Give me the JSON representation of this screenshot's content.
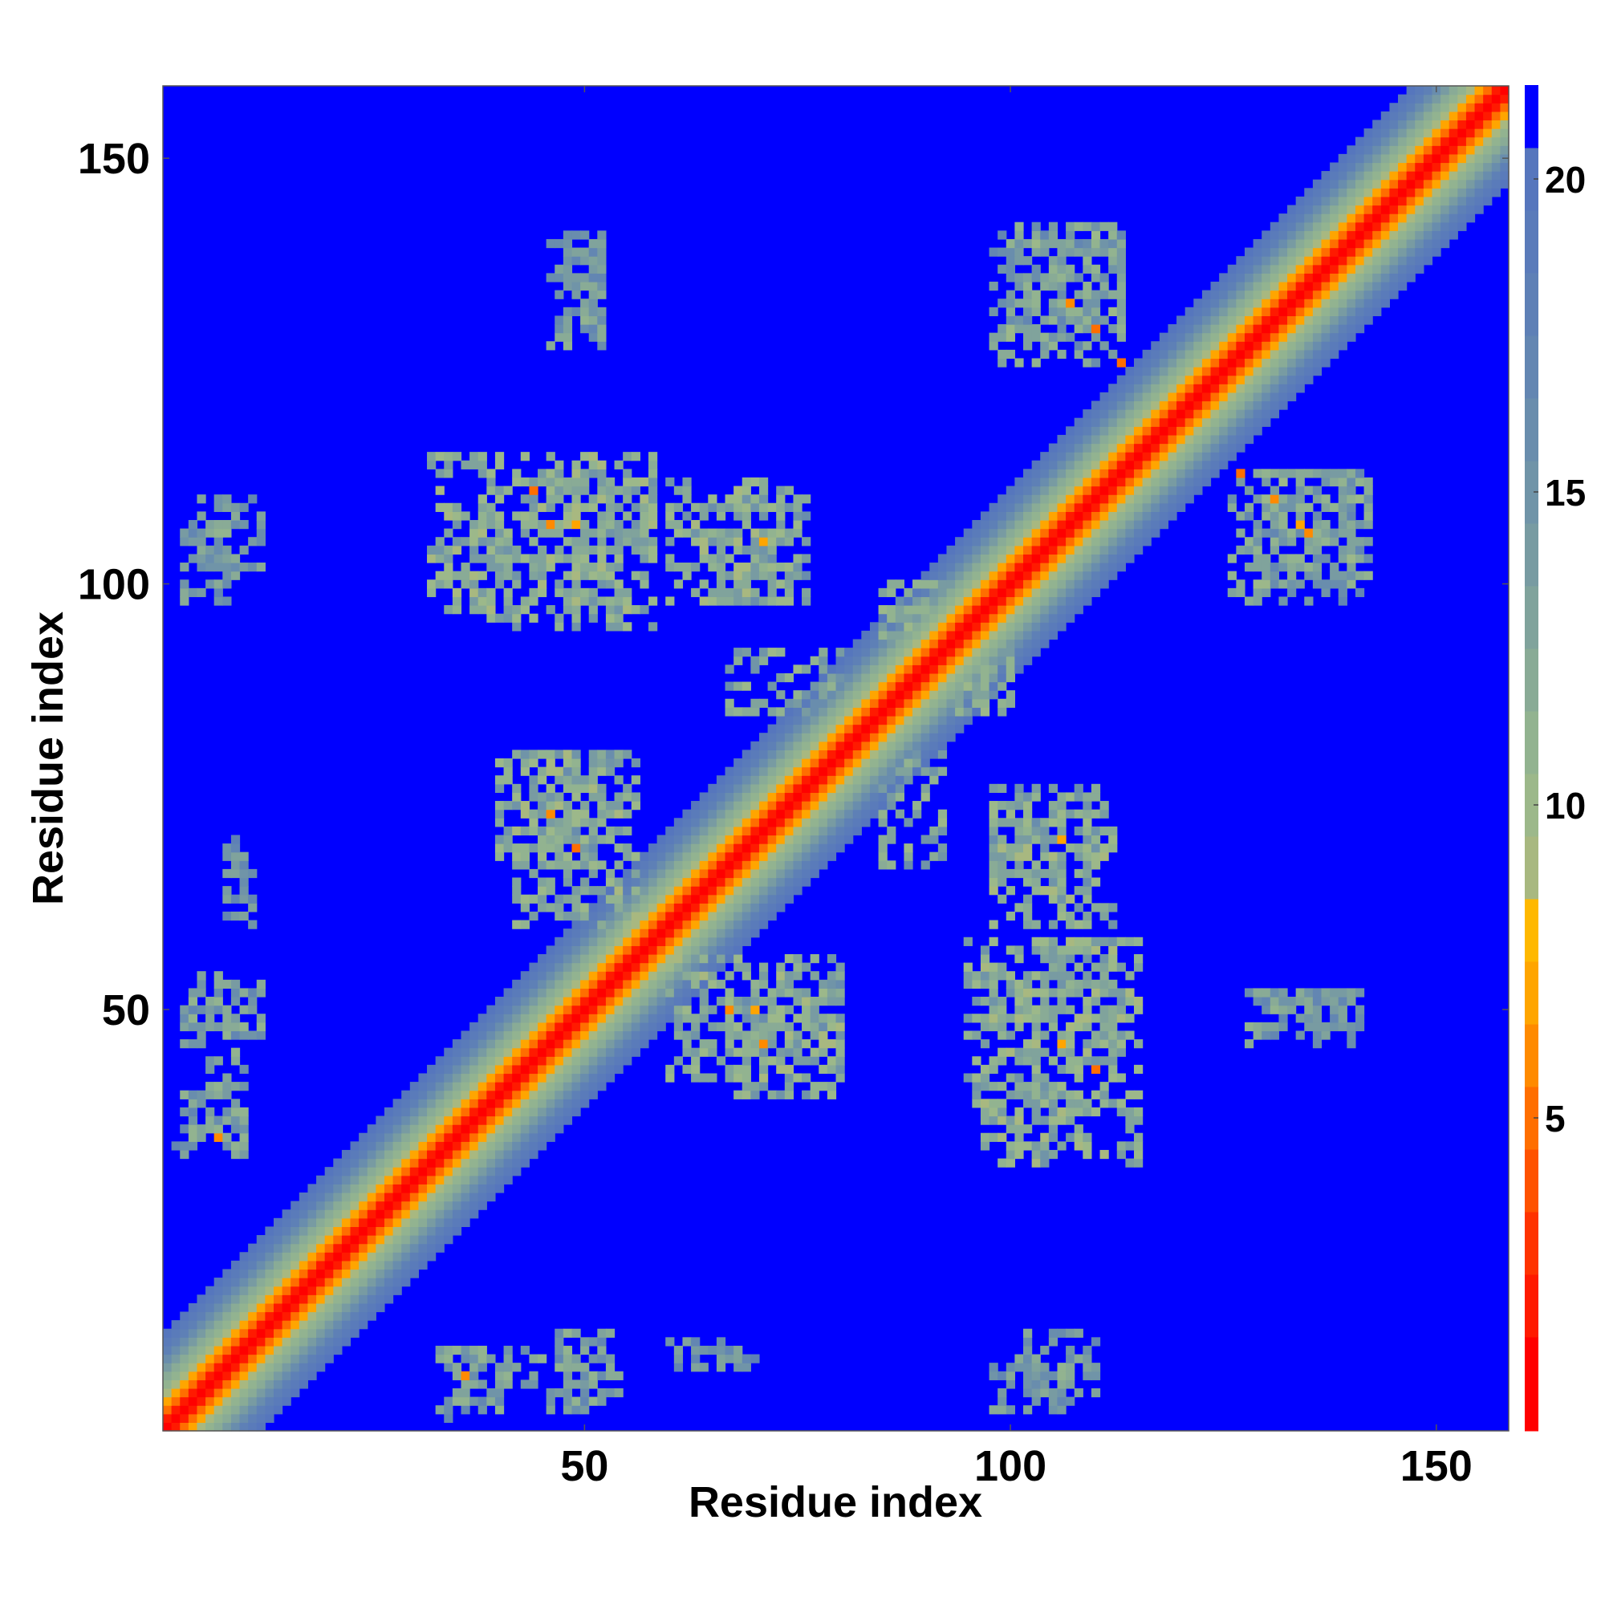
{
  "chart_data": {
    "type": "heatmap",
    "title": "",
    "xlabel": "Residue index",
    "ylabel": "Residue index",
    "n_residues": 158,
    "xlim": [
      1,
      158
    ],
    "ylim": [
      1,
      158
    ],
    "x_ticks": [
      50,
      100,
      150
    ],
    "y_ticks": [
      50,
      100,
      150
    ],
    "x_tick_labels": [
      "50",
      "100",
      "150"
    ],
    "y_tick_labels": [
      "50",
      "100",
      "150"
    ],
    "colorbar": {
      "range": [
        0,
        21.5
      ],
      "ticks": [
        5,
        10,
        15,
        20
      ],
      "tick_labels": [
        "5",
        "10",
        "15",
        "20"
      ],
      "levels": [
        {
          "upto": 1.5,
          "color": "#ff0000"
        },
        {
          "upto": 2.5,
          "color": "#ff1a00"
        },
        {
          "upto": 3.5,
          "color": "#ff3300"
        },
        {
          "upto": 4.5,
          "color": "#ff5200"
        },
        {
          "upto": 5.5,
          "color": "#ff6e00"
        },
        {
          "upto": 6.5,
          "color": "#ff8a00"
        },
        {
          "upto": 7.5,
          "color": "#ffa500"
        },
        {
          "upto": 8.5,
          "color": "#ffb800"
        },
        {
          "upto": 9.5,
          "color": "#a8b880"
        },
        {
          "upto": 10.5,
          "color": "#9cb88a"
        },
        {
          "upto": 11.5,
          "color": "#92b390"
        },
        {
          "upto": 12.5,
          "color": "#89ab96"
        },
        {
          "upto": 13.5,
          "color": "#80a39c"
        },
        {
          "upto": 14.5,
          "color": "#789ba2"
        },
        {
          "upto": 15.5,
          "color": "#7094a8"
        },
        {
          "upto": 16.5,
          "color": "#698dad"
        },
        {
          "upto": 17.5,
          "color": "#6386b2"
        },
        {
          "upto": 18.5,
          "color": "#5e80b6"
        },
        {
          "upto": 19.5,
          "color": "#5a7bba"
        },
        {
          "upto": 20.5,
          "color": "#5676bd"
        },
        {
          "upto": 99,
          "color": "#0000ff"
        }
      ]
    },
    "background_value": 21,
    "diagonal_profile": [
      {
        "d": 0,
        "v": 1
      },
      {
        "d": 1,
        "v": 2.5
      },
      {
        "d": 2,
        "v": 5.5
      },
      {
        "d": 3,
        "v": 7
      },
      {
        "d": 4,
        "v": 9.5
      },
      {
        "d": 5,
        "v": 11
      },
      {
        "d": 6,
        "v": 12.5
      },
      {
        "d": 7,
        "v": 14
      },
      {
        "d": 8,
        "v": 16
      },
      {
        "d": 9,
        "v": 18
      },
      {
        "d": 10,
        "v": 19.5
      },
      {
        "d": 11,
        "v": 20.5
      }
    ],
    "contact_clusters": [
      {
        "x": [
          4,
          12
        ],
        "y": [
          102,
          110
        ],
        "value": 14
      },
      {
        "x": [
          4,
          12
        ],
        "y": [
          47,
          54
        ],
        "value": 14
      },
      {
        "x": [
          2,
          10
        ],
        "y": [
          34,
          40
        ],
        "value": 14
      },
      {
        "x": [
          32,
          58
        ],
        "y": [
          97,
          115
        ],
        "value": 12
      },
      {
        "x": [
          60,
          74
        ],
        "y": [
          98,
          112
        ],
        "value": 12
      },
      {
        "x": [
          46,
          52
        ],
        "y": [
          128,
          141
        ],
        "value": 14
      },
      {
        "x": [
          40,
          55
        ],
        "y": [
          68,
          80
        ],
        "value": 13
      },
      {
        "x": [
          60,
          80
        ],
        "y": [
          42,
          56
        ],
        "value": 12
      },
      {
        "x": [
          95,
          112
        ],
        "y": [
          38,
          58
        ],
        "value": 12
      },
      {
        "x": [
          98,
          110
        ],
        "y": [
          64,
          76
        ],
        "value": 13
      },
      {
        "x": [
          98,
          113
        ],
        "y": [
          126,
          141
        ],
        "value": 14
      },
      {
        "x": [
          128,
          142
        ],
        "y": [
          100,
          113
        ],
        "value": 13
      },
      {
        "x": [
          130,
          140
        ],
        "y": [
          48,
          52
        ],
        "value": 15
      },
      {
        "x": [
          33,
          52
        ],
        "y": [
          3,
          10
        ],
        "value": 14
      },
      {
        "x": [
          60,
          70
        ],
        "y": [
          8,
          11
        ],
        "value": 15
      },
      {
        "x": [
          98,
          108
        ],
        "y": [
          3,
          9
        ],
        "value": 14
      },
      {
        "x": [
          85,
          92
        ],
        "y": [
          85,
          100
        ],
        "value": 13
      },
      {
        "x": [
          67,
          80
        ],
        "y": [
          85,
          92
        ],
        "value": 13
      }
    ],
    "close_contacts": [
      {
        "x": 44,
        "y": 111,
        "value": 5
      },
      {
        "x": 46,
        "y": 107,
        "value": 6
      },
      {
        "x": 49,
        "y": 107,
        "value": 7
      },
      {
        "x": 71,
        "y": 105,
        "value": 7
      },
      {
        "x": 46,
        "y": 73,
        "value": 6
      },
      {
        "x": 49,
        "y": 69,
        "value": 5
      },
      {
        "x": 67,
        "y": 50,
        "value": 6
      },
      {
        "x": 70,
        "y": 50,
        "value": 7
      },
      {
        "x": 71,
        "y": 46,
        "value": 6
      },
      {
        "x": 106,
        "y": 70,
        "value": 7
      },
      {
        "x": 107,
        "y": 133,
        "value": 6
      },
      {
        "x": 110,
        "y": 130,
        "value": 5
      },
      {
        "x": 113,
        "y": 126,
        "value": 5
      },
      {
        "x": 127,
        "y": 113,
        "value": 5
      },
      {
        "x": 131,
        "y": 110,
        "value": 6
      },
      {
        "x": 134,
        "y": 107,
        "value": 7
      },
      {
        "x": 135,
        "y": 106,
        "value": 6
      },
      {
        "x": 106,
        "y": 46,
        "value": 7
      },
      {
        "x": 110,
        "y": 43,
        "value": 5
      },
      {
        "x": 7,
        "y": 35,
        "value": 6
      },
      {
        "x": 36,
        "y": 7,
        "value": 6
      }
    ]
  }
}
